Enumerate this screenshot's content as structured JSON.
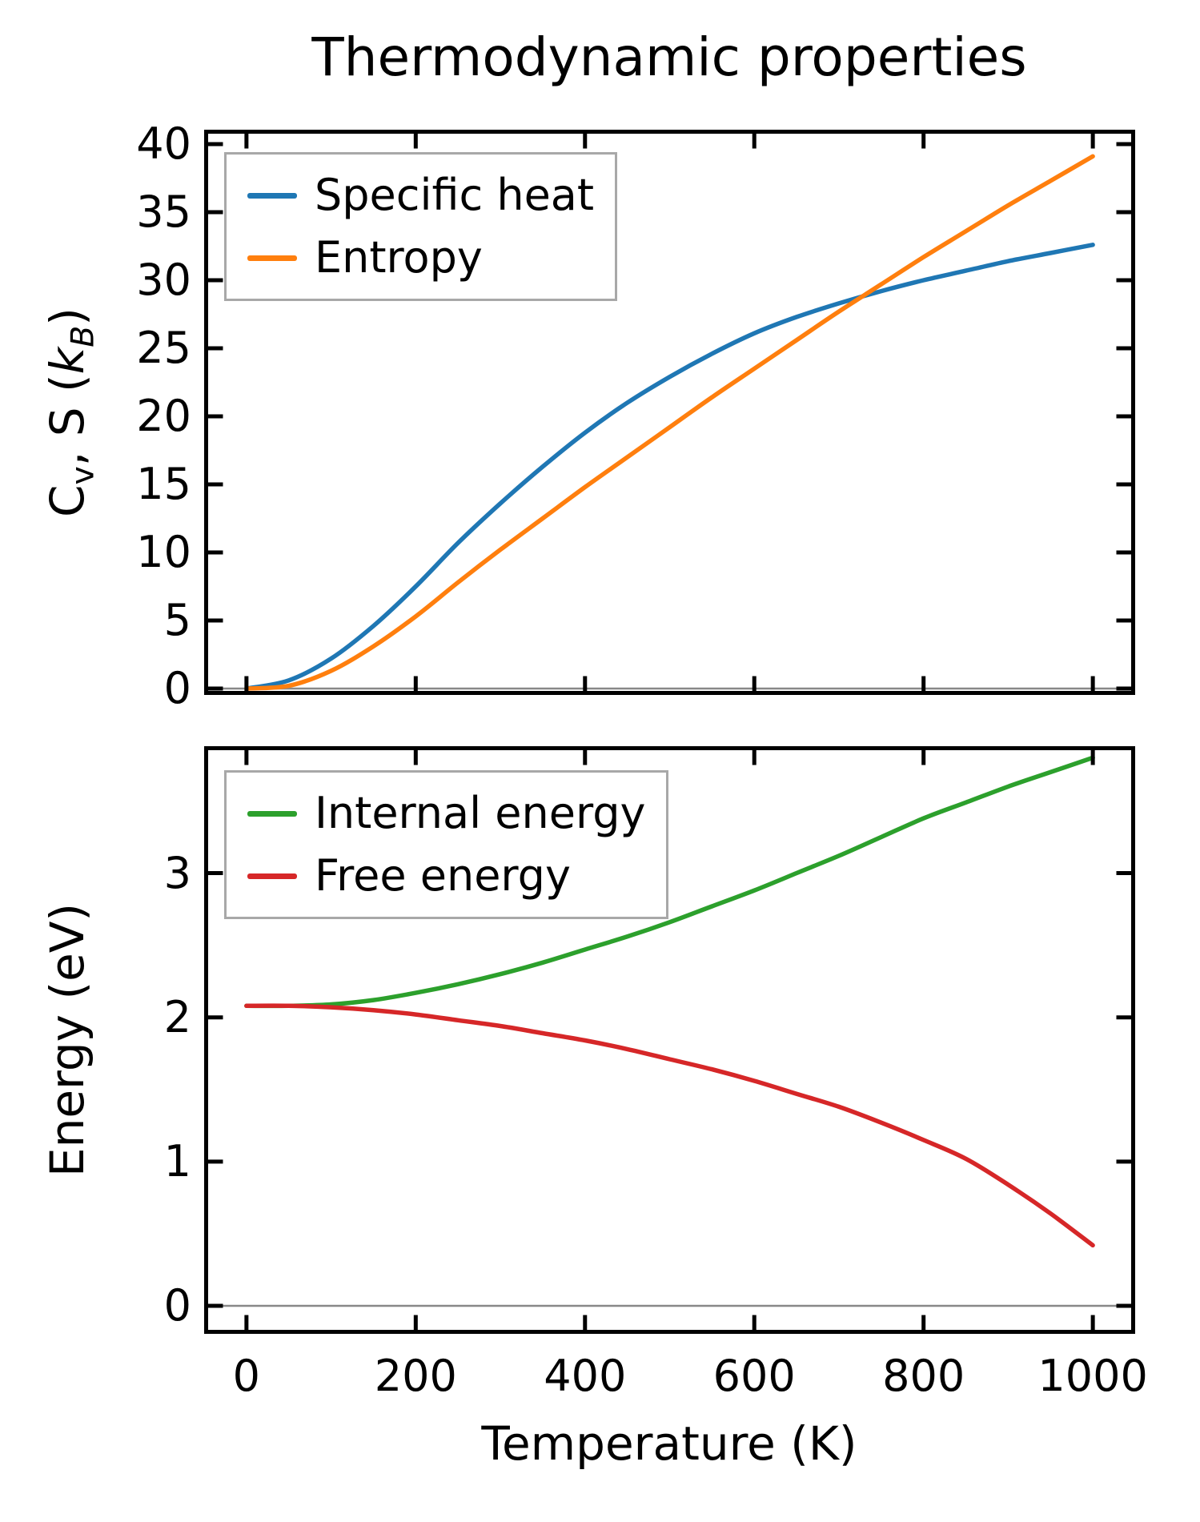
{
  "figure": {
    "background": "#ffffff",
    "title": "Thermodynamic properties"
  },
  "chart_data": [
    {
      "type": "line",
      "title": "Thermodynamic properties",
      "xlabel": "",
      "ylabel": "Cv, S (kB)",
      "ylabel_parts": [
        {
          "text": "C"
        },
        {
          "text": "v",
          "style": "sub"
        },
        {
          "text": ", S ("
        },
        {
          "text": "k",
          "style": "italic"
        },
        {
          "text": "B",
          "style": "sub-italic"
        },
        {
          "text": ")"
        }
      ],
      "x": [
        0,
        50,
        100,
        150,
        200,
        250,
        300,
        350,
        400,
        450,
        500,
        550,
        600,
        650,
        700,
        750,
        800,
        850,
        900,
        950,
        1000
      ],
      "series": [
        {
          "name": "Specific heat",
          "color": "#1f77b4",
          "values": [
            0.0,
            0.6,
            2.2,
            4.6,
            7.5,
            10.7,
            13.6,
            16.3,
            18.8,
            21.0,
            22.9,
            24.6,
            26.1,
            27.3,
            28.3,
            29.2,
            30.0,
            30.7,
            31.4,
            32.0,
            32.6
          ]
        },
        {
          "name": "Entropy",
          "color": "#ff7f0e",
          "values": [
            0.0,
            0.2,
            1.3,
            3.1,
            5.3,
            7.8,
            10.2,
            12.5,
            14.8,
            17.0,
            19.2,
            21.4,
            23.5,
            25.6,
            27.7,
            29.7,
            31.7,
            33.6,
            35.5,
            37.3,
            39.1
          ]
        }
      ],
      "xlim": [
        -50,
        1050
      ],
      "ylim": [
        -0.47,
        41.06
      ],
      "xticks": [
        0,
        200,
        400,
        600,
        800,
        1000
      ],
      "yticks": [
        0,
        5,
        10,
        15,
        20,
        25,
        30,
        35,
        40
      ],
      "x_tick_labels_visible": false,
      "grid": false,
      "legend_position": "upper left",
      "zero_line": true,
      "zero_line_color": "#888888",
      "spine_color": "#000000"
    },
    {
      "type": "line",
      "title": "",
      "xlabel": "Temperature (K)",
      "ylabel": "Energy (eV)",
      "x": [
        0,
        50,
        100,
        150,
        200,
        250,
        300,
        350,
        400,
        450,
        500,
        550,
        600,
        650,
        700,
        750,
        800,
        850,
        900,
        950,
        1000
      ],
      "series": [
        {
          "name": "Internal energy",
          "color": "#2ca02c",
          "values": [
            2.08,
            2.08,
            2.09,
            2.12,
            2.17,
            2.23,
            2.3,
            2.38,
            2.47,
            2.56,
            2.66,
            2.77,
            2.88,
            3.0,
            3.12,
            3.25,
            3.38,
            3.49,
            3.6,
            3.7,
            3.8
          ]
        },
        {
          "name": "Free energy",
          "color": "#d62728",
          "values": [
            2.08,
            2.08,
            2.07,
            2.05,
            2.02,
            1.98,
            1.94,
            1.89,
            1.84,
            1.78,
            1.71,
            1.64,
            1.56,
            1.47,
            1.38,
            1.27,
            1.15,
            1.02,
            0.84,
            0.64,
            0.42
          ]
        }
      ],
      "xlim": [
        -50,
        1050
      ],
      "ylim": [
        -0.194,
        3.88
      ],
      "xticks": [
        0,
        200,
        400,
        600,
        800,
        1000
      ],
      "yticks": [
        0,
        1,
        2,
        3
      ],
      "x_tick_labels_visible": true,
      "grid": false,
      "legend_position": "upper left",
      "zero_line": true,
      "zero_line_color": "#888888",
      "spine_color": "#000000"
    }
  ]
}
